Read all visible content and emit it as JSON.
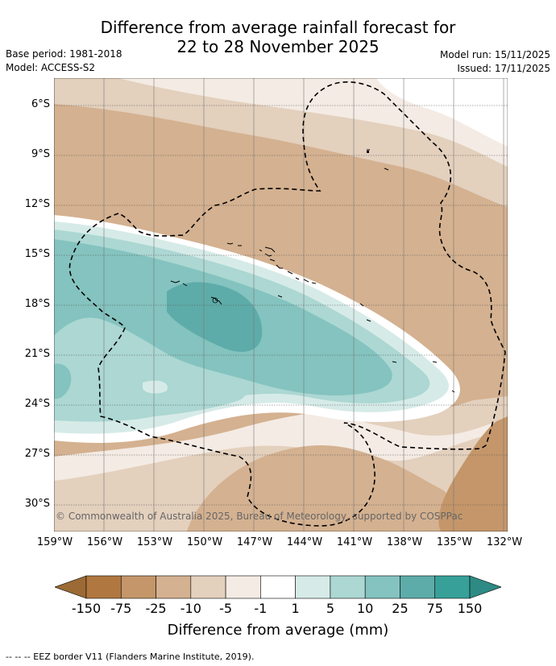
{
  "header": {
    "title_line1": "Difference from average rainfall forecast for",
    "title_line2": "22 to 28 November 2025",
    "base_period": "Base period: 1981-2018",
    "model": "Model: ACCESS-S2",
    "model_run": "Model run: 15/11/2025",
    "issued": "Issued: 17/11/2025"
  },
  "map": {
    "lat_labels": [
      "6°S",
      "9°S",
      "12°S",
      "15°S",
      "18°S",
      "21°S",
      "24°S",
      "27°S",
      "30°S"
    ],
    "lon_labels": [
      "159°W",
      "156°W",
      "153°W",
      "150°W",
      "147°W",
      "144°W",
      "141°W",
      "138°W",
      "135°W",
      "132°W"
    ],
    "copyright": "© Commonwealth of Australia 2025, Bureau of Meteorology, supported by COSPPac",
    "border_description": "EEZ border"
  },
  "colorbar": {
    "title": "Difference from average (mm)",
    "tick_labels": [
      "-150",
      "-75",
      "-25",
      "-10",
      "-5",
      "-1",
      "1",
      "5",
      "10",
      "25",
      "75",
      "150"
    ],
    "colors": {
      "below_min": "#9b6a35",
      "bins": [
        "#b07840",
        "#c4966a",
        "#d4b190",
        "#e3d0bd",
        "#f4ebe4",
        "#ffffff",
        "#d6ebe8",
        "#acd7d3",
        "#84c3bf",
        "#5eaca9",
        "#36a099"
      ],
      "above_max": "#2e8a84"
    }
  },
  "footnote": "--  --  -- EEZ border V11 (Flanders Marine Institute, 2019)."
}
